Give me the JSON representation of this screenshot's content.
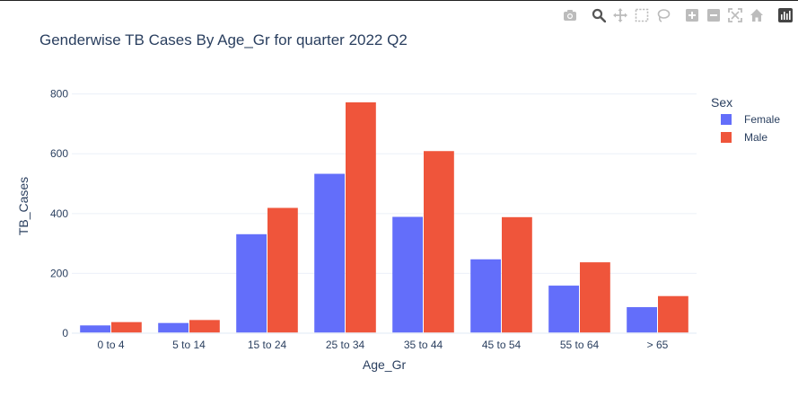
{
  "chart_data": {
    "type": "bar",
    "barmode": "group",
    "title": "Genderwise TB Cases By Age_Gr for quarter 2022 Q2",
    "xlabel": "Age_Gr",
    "ylabel": "TB_Cases",
    "categories": [
      "0 to 4",
      "5 to 14",
      "15 to 24",
      "25 to 34",
      "35 to 44",
      "45 to 54",
      "55 to 64",
      "> 65"
    ],
    "series": [
      {
        "name": "Female",
        "color": "#636efa",
        "values": [
          26,
          34,
          331,
          533,
          389,
          247,
          159,
          87
        ]
      },
      {
        "name": "Male",
        "color": "#ef553b",
        "values": [
          37,
          44,
          419,
          772,
          609,
          388,
          237,
          124
        ]
      }
    ],
    "ylim": [
      0,
      850
    ],
    "yticks": [
      0,
      200,
      400,
      600,
      800
    ],
    "grid": true,
    "legend": {
      "title": "Sex",
      "placement": "top-right"
    }
  },
  "modebar": {
    "icons": [
      "camera-icon",
      "zoom-icon",
      "pan-icon",
      "box-select-icon",
      "lasso-icon",
      "zoom-in-icon",
      "zoom-out-icon",
      "autoscale-icon",
      "home-icon",
      "plotly-logo-icon"
    ]
  }
}
